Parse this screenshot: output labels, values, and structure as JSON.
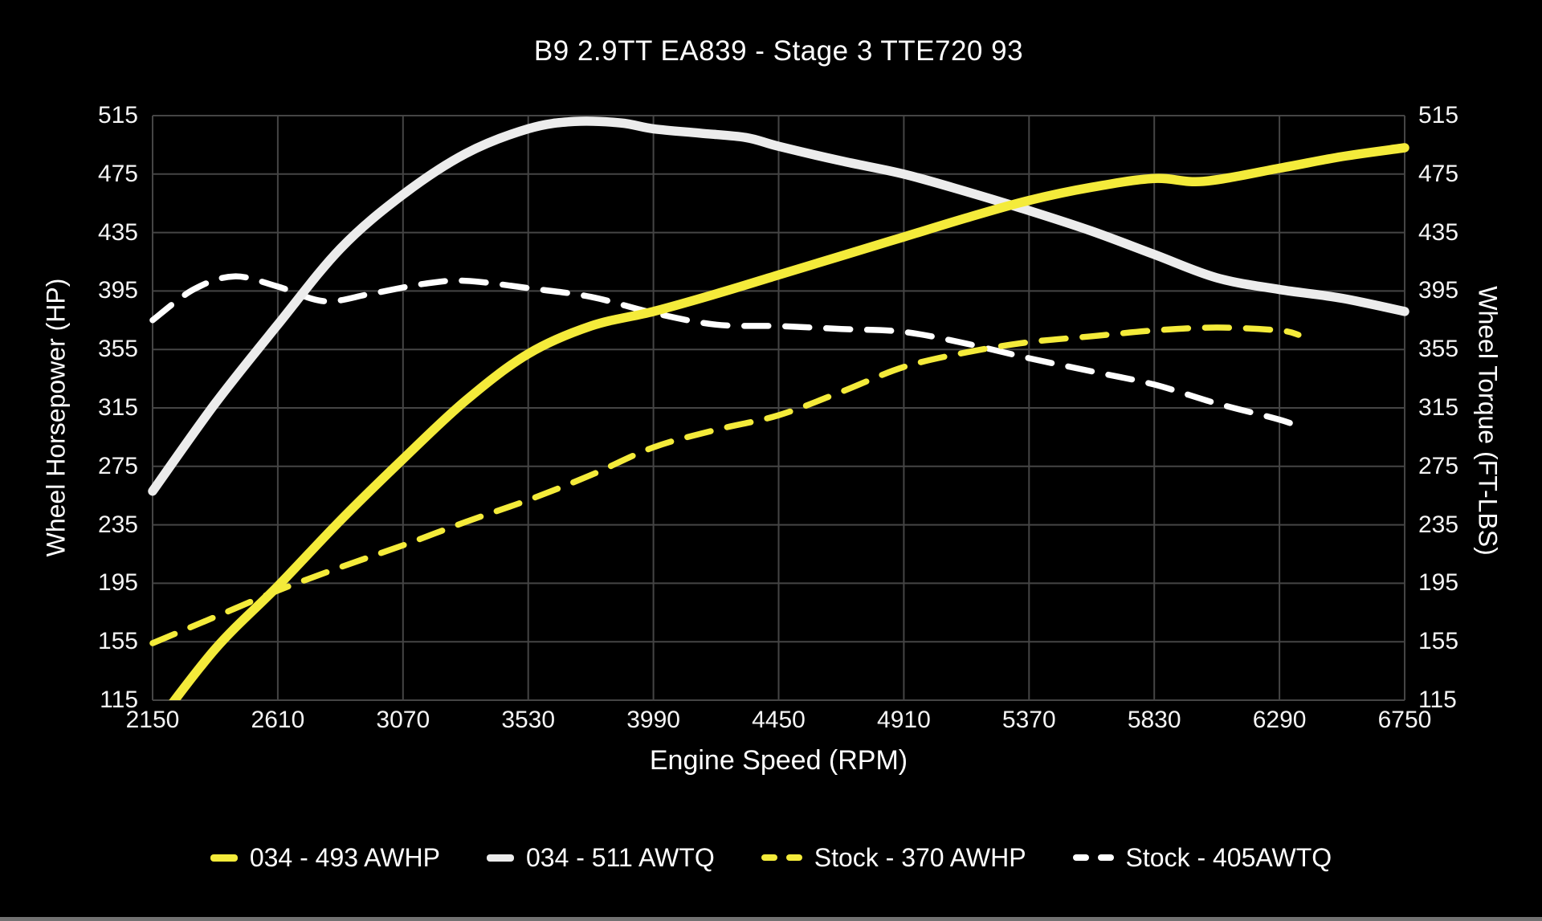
{
  "colors": {
    "background": "#000000",
    "grid": "#454545",
    "text": "#f5f5f5",
    "yellow": "#f4eb3a",
    "white_solid": "#ececec",
    "white_dashed": "#ffffff",
    "bottom_strip": "#8f8f8f"
  },
  "chart_data": {
    "type": "line",
    "title": "B9 2.9TT EA839 - Stage 3 TTE720 93",
    "xlabel": "Engine Speed (RPM)",
    "ylabel_left": "Wheel Horsepower (HP)",
    "ylabel_right": "Wheel Torque (FT-LBS)",
    "xlim": [
      2150,
      6750
    ],
    "ylim": [
      115,
      515
    ],
    "x_ticks": [
      2150,
      2610,
      3070,
      3530,
      3990,
      4450,
      4910,
      5370,
      5830,
      6290,
      6750
    ],
    "y_ticks": [
      115,
      155,
      195,
      235,
      275,
      315,
      355,
      395,
      435,
      475,
      515
    ],
    "grid": true,
    "legend_position": "bottom",
    "series": [
      {
        "name": "034 - 493 AWHP",
        "color_key": "yellow",
        "style": "solid",
        "points": [
          [
            2150,
            95
          ],
          [
            2380,
            150
          ],
          [
            2610,
            193
          ],
          [
            2840,
            238
          ],
          [
            3070,
            280
          ],
          [
            3300,
            320
          ],
          [
            3530,
            352
          ],
          [
            3760,
            371
          ],
          [
            3990,
            381
          ],
          [
            4220,
            393
          ],
          [
            4450,
            406
          ],
          [
            4680,
            419
          ],
          [
            4910,
            432
          ],
          [
            5140,
            445
          ],
          [
            5370,
            457
          ],
          [
            5600,
            466
          ],
          [
            5830,
            472
          ],
          [
            6010,
            470
          ],
          [
            6290,
            479
          ],
          [
            6520,
            487
          ],
          [
            6750,
            493
          ]
        ]
      },
      {
        "name": "034 - 511 AWTQ",
        "color_key": "white_solid",
        "style": "solid",
        "points": [
          [
            2150,
            258
          ],
          [
            2380,
            318
          ],
          [
            2610,
            372
          ],
          [
            2840,
            424
          ],
          [
            3070,
            461
          ],
          [
            3300,
            489
          ],
          [
            3530,
            506
          ],
          [
            3700,
            511
          ],
          [
            3870,
            510
          ],
          [
            3990,
            506
          ],
          [
            4160,
            503
          ],
          [
            4330,
            500
          ],
          [
            4450,
            494
          ],
          [
            4680,
            484
          ],
          [
            4910,
            475
          ],
          [
            5140,
            463
          ],
          [
            5370,
            450
          ],
          [
            5600,
            436
          ],
          [
            5830,
            420
          ],
          [
            6060,
            404
          ],
          [
            6290,
            396
          ],
          [
            6520,
            390
          ],
          [
            6750,
            381
          ]
        ]
      },
      {
        "name": "Stock - 370 AWHP",
        "color_key": "yellow",
        "style": "dashed",
        "points": [
          [
            2150,
            154
          ],
          [
            2380,
            172
          ],
          [
            2610,
            190
          ],
          [
            2840,
            206
          ],
          [
            3070,
            221
          ],
          [
            3300,
            237
          ],
          [
            3530,
            252
          ],
          [
            3760,
            269
          ],
          [
            3990,
            288
          ],
          [
            4220,
            300
          ],
          [
            4450,
            310
          ],
          [
            4680,
            326
          ],
          [
            4910,
            343
          ],
          [
            5140,
            353
          ],
          [
            5370,
            360
          ],
          [
            5600,
            364
          ],
          [
            5830,
            368
          ],
          [
            6060,
            370
          ],
          [
            6290,
            368
          ],
          [
            6360,
            365
          ]
        ]
      },
      {
        "name": "Stock - 405AWTQ",
        "color_key": "white_dashed",
        "style": "dashed",
        "points": [
          [
            2150,
            375
          ],
          [
            2300,
            396
          ],
          [
            2450,
            405
          ],
          [
            2610,
            398
          ],
          [
            2780,
            388
          ],
          [
            2950,
            393
          ],
          [
            3150,
            400
          ],
          [
            3300,
            402
          ],
          [
            3530,
            397
          ],
          [
            3760,
            391
          ],
          [
            3990,
            380
          ],
          [
            4220,
            372
          ],
          [
            4450,
            371
          ],
          [
            4680,
            369
          ],
          [
            4910,
            367
          ],
          [
            5140,
            359
          ],
          [
            5370,
            349
          ],
          [
            5600,
            340
          ],
          [
            5830,
            331
          ],
          [
            6060,
            318
          ],
          [
            6290,
            307
          ],
          [
            6360,
            302
          ]
        ]
      }
    ]
  }
}
